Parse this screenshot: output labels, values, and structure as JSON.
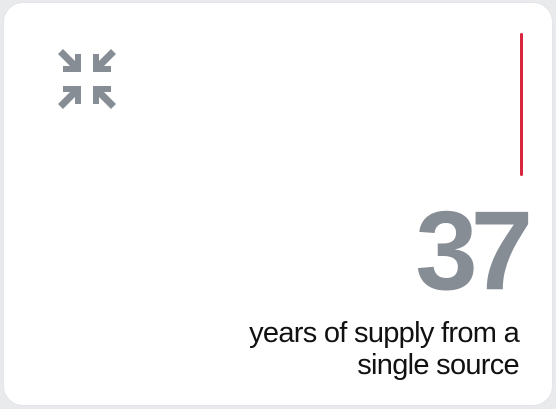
{
  "card": {
    "icon": "compress-arrows-icon",
    "stat_value": "37",
    "caption_line1": "years of supply from a",
    "caption_line2": "single source"
  },
  "colors": {
    "stat_gray": "#868d95",
    "icon_gray": "#868d95",
    "accent_red": "#d7263d"
  }
}
